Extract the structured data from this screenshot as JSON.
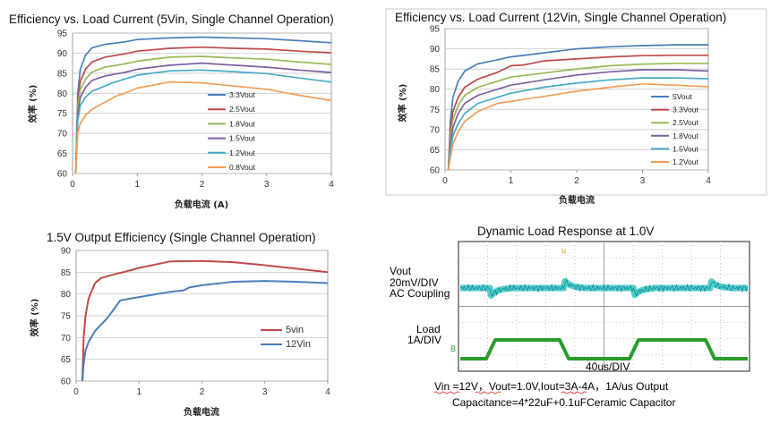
{
  "chart_data": [
    {
      "type": "line",
      "title": "Efficiency vs. Load Current (5Vin, Single Channel Operation)",
      "xlabel": "负载电流 (A)",
      "ylabel": "效率 (%)",
      "xlim": [
        0,
        4
      ],
      "ylim": [
        60,
        95
      ],
      "xticks": [
        "0",
        "1",
        "2",
        "3",
        "4"
      ],
      "yticks": [
        "60",
        "65",
        "70",
        "75",
        "80",
        "85",
        "90",
        "95"
      ],
      "grid": true,
      "legend_position": "right",
      "series": [
        {
          "name": "3.3Vout",
          "color": "#4a7ebb",
          "points": [
            [
              0.05,
              60
            ],
            [
              0.08,
              80
            ],
            [
              0.12,
              86
            ],
            [
              0.2,
              89.5
            ],
            [
              0.3,
              91.3
            ],
            [
              0.5,
              92.2
            ],
            [
              0.8,
              92.8
            ],
            [
              1.0,
              93.4
            ],
            [
              1.5,
              93.8
            ],
            [
              2.0,
              94
            ],
            [
              2.5,
              93.8
            ],
            [
              3.0,
              93.6
            ],
            [
              3.5,
              93.1
            ],
            [
              4.0,
              92.6
            ]
          ]
        },
        {
          "name": "2.5Vout",
          "color": "#be4b48",
          "points": [
            [
              0.05,
              60
            ],
            [
              0.08,
              78
            ],
            [
              0.12,
              83
            ],
            [
              0.2,
              86
            ],
            [
              0.3,
              87.8
            ],
            [
              0.5,
              89
            ],
            [
              0.8,
              89.8
            ],
            [
              1.0,
              90.5
            ],
            [
              1.5,
              91.2
            ],
            [
              2.0,
              91.5
            ],
            [
              2.5,
              91.2
            ],
            [
              3.0,
              91
            ],
            [
              3.5,
              90.5
            ],
            [
              4.0,
              90.1
            ]
          ]
        },
        {
          "name": "1.8Vout",
          "color": "#98b954",
          "points": [
            [
              0.05,
              60
            ],
            [
              0.08,
              77
            ],
            [
              0.12,
              81
            ],
            [
              0.2,
              83.5
            ],
            [
              0.3,
              85.3
            ],
            [
              0.5,
              86.5
            ],
            [
              0.8,
              87.3
            ],
            [
              1.0,
              88
            ],
            [
              1.5,
              89
            ],
            [
              2.0,
              89.2
            ],
            [
              2.5,
              88.8
            ],
            [
              3.0,
              88.5
            ],
            [
              3.5,
              87.8
            ],
            [
              4.0,
              87.2
            ]
          ]
        },
        {
          "name": "1.5Vout",
          "color": "#7d60a0",
          "points": [
            [
              0.05,
              60
            ],
            [
              0.08,
              75
            ],
            [
              0.12,
              79
            ],
            [
              0.2,
              81.5
            ],
            [
              0.3,
              83.2
            ],
            [
              0.5,
              84.3
            ],
            [
              0.8,
              85.2
            ],
            [
              1.0,
              86
            ],
            [
              1.5,
              87
            ],
            [
              2.0,
              87.5
            ],
            [
              2.5,
              87
            ],
            [
              3.0,
              86.5
            ],
            [
              3.5,
              85.8
            ],
            [
              4.0,
              85.2
            ]
          ]
        },
        {
          "name": "1.2Vout",
          "color": "#46aac5",
          "points": [
            [
              0.05,
              60
            ],
            [
              0.08,
              73
            ],
            [
              0.12,
              77
            ],
            [
              0.2,
              79
            ],
            [
              0.3,
              80.5
            ],
            [
              0.5,
              81.8
            ],
            [
              0.6,
              82.5
            ],
            [
              0.8,
              83.5
            ],
            [
              1.0,
              84.5
            ],
            [
              1.5,
              85.6
            ],
            [
              2.0,
              85.8
            ],
            [
              2.5,
              85.4
            ],
            [
              3.0,
              84.9
            ],
            [
              3.5,
              83.8
            ],
            [
              4.0,
              82.8
            ]
          ]
        },
        {
          "name": "0.8Vout",
          "color": "#f59d56",
          "points": [
            [
              0.05,
              60
            ],
            [
              0.08,
              70
            ],
            [
              0.12,
              72.5
            ],
            [
              0.2,
              74.5
            ],
            [
              0.3,
              76
            ],
            [
              0.5,
              77.8
            ],
            [
              0.7,
              79.5
            ],
            [
              0.8,
              80
            ],
            [
              1.0,
              81.3
            ],
            [
              1.5,
              82.8
            ],
            [
              2.0,
              82.6
            ],
            [
              2.5,
              81.8
            ],
            [
              3.0,
              81
            ],
            [
              3.5,
              79.5
            ],
            [
              4.0,
              78.2
            ]
          ]
        }
      ]
    },
    {
      "type": "line",
      "title": "Efficiency vs. Load Current (12Vin, Single Channel Operation)",
      "xlabel": "负载电流",
      "ylabel": "效率 (%)",
      "xlim": [
        0,
        4
      ],
      "ylim": [
        60,
        95
      ],
      "xticks": [
        "0",
        "1",
        "2",
        "3",
        "4"
      ],
      "yticks": [
        "60",
        "65",
        "70",
        "75",
        "80",
        "85",
        "90",
        "95"
      ],
      "grid": true,
      "legend_position": "right",
      "series": [
        {
          "name": "5Vout",
          "color": "#4a7ebb",
          "points": [
            [
              0.05,
              60
            ],
            [
              0.08,
              72
            ],
            [
              0.12,
              78
            ],
            [
              0.2,
              82
            ],
            [
              0.3,
              84.5
            ],
            [
              0.5,
              86.3
            ],
            [
              0.8,
              87.3
            ],
            [
              1.0,
              88
            ],
            [
              1.5,
              89
            ],
            [
              2.0,
              90
            ],
            [
              2.5,
              90.5
            ],
            [
              3.0,
              90.8
            ],
            [
              3.5,
              91
            ],
            [
              4.0,
              91
            ]
          ]
        },
        {
          "name": "3.3Vout",
          "color": "#be4b48",
          "points": [
            [
              0.05,
              60
            ],
            [
              0.08,
              70
            ],
            [
              0.12,
              74.5
            ],
            [
              0.2,
              78
            ],
            [
              0.3,
              80.5
            ],
            [
              0.5,
              82.5
            ],
            [
              0.8,
              84.2
            ],
            [
              1.0,
              85.8
            ],
            [
              1.2,
              86
            ],
            [
              1.5,
              87
            ],
            [
              2.0,
              87.5
            ],
            [
              2.5,
              88
            ],
            [
              3.0,
              88.3
            ],
            [
              3.5,
              88.4
            ],
            [
              4.0,
              88.4
            ]
          ]
        },
        {
          "name": "2.5Vout",
          "color": "#98b954",
          "points": [
            [
              0.05,
              60
            ],
            [
              0.08,
              68
            ],
            [
              0.12,
              72.5
            ],
            [
              0.2,
              76
            ],
            [
              0.3,
              78.5
            ],
            [
              0.5,
              80.5
            ],
            [
              0.8,
              82
            ],
            [
              1.0,
              83
            ],
            [
              1.5,
              84
            ],
            [
              2.0,
              85
            ],
            [
              2.5,
              85.8
            ],
            [
              3.0,
              86.2
            ],
            [
              3.5,
              86.4
            ],
            [
              4.0,
              86.4
            ]
          ]
        },
        {
          "name": "1.8Vout",
          "color": "#7d60a0",
          "points": [
            [
              0.05,
              60
            ],
            [
              0.08,
              66
            ],
            [
              0.12,
              70.5
            ],
            [
              0.2,
              74
            ],
            [
              0.3,
              76.5
            ],
            [
              0.5,
              78.5
            ],
            [
              0.8,
              80
            ],
            [
              1.0,
              81
            ],
            [
              1.5,
              82.3
            ],
            [
              2.0,
              83.5
            ],
            [
              2.5,
              84.3
            ],
            [
              3.0,
              84.8
            ],
            [
              3.5,
              84.8
            ],
            [
              4.0,
              84.5
            ]
          ]
        },
        {
          "name": "1.5Vout",
          "color": "#46aac5",
          "points": [
            [
              0.05,
              60
            ],
            [
              0.08,
              65
            ],
            [
              0.12,
              68.5
            ],
            [
              0.2,
              71.5
            ],
            [
              0.3,
              74
            ],
            [
              0.5,
              76.5
            ],
            [
              0.8,
              78
            ],
            [
              1.0,
              79
            ],
            [
              1.5,
              80.5
            ],
            [
              2.0,
              81.5
            ],
            [
              2.5,
              82.3
            ],
            [
              3.0,
              82.8
            ],
            [
              3.5,
              82.8
            ],
            [
              4.0,
              82.6
            ]
          ]
        },
        {
          "name": "1.2Vout",
          "color": "#f59d56",
          "points": [
            [
              0.05,
              60
            ],
            [
              0.08,
              63
            ],
            [
              0.12,
              66.5
            ],
            [
              0.2,
              69.5
            ],
            [
              0.3,
              72
            ],
            [
              0.5,
              74.5
            ],
            [
              0.8,
              76.5
            ],
            [
              1.0,
              77
            ],
            [
              1.5,
              78.2
            ],
            [
              2.0,
              79.5
            ],
            [
              2.5,
              80.5
            ],
            [
              3.0,
              81.3
            ],
            [
              3.5,
              81
            ],
            [
              4.0,
              80.6
            ]
          ]
        }
      ]
    },
    {
      "type": "line",
      "title": "1.5V Output Efficiency (Single Channel Operation)",
      "xlabel": "负载电流",
      "ylabel": "效率 (%)",
      "xlim": [
        0,
        4
      ],
      "ylim": [
        60,
        90
      ],
      "xticks": [
        "0",
        "1",
        "2",
        "3",
        "4"
      ],
      "yticks": [
        "60",
        "65",
        "70",
        "75",
        "80",
        "85",
        "90"
      ],
      "grid": true,
      "legend_position": "bottom-right",
      "series": [
        {
          "name": "5vin",
          "color": "#be4b48",
          "points": [
            [
              0.1,
              60
            ],
            [
              0.12,
              70
            ],
            [
              0.15,
              75
            ],
            [
              0.2,
              79
            ],
            [
              0.3,
              82.5
            ],
            [
              0.4,
              83.7
            ],
            [
              0.6,
              84.5
            ],
            [
              0.8,
              85.2
            ],
            [
              1.0,
              86
            ],
            [
              1.5,
              87.5
            ],
            [
              2.0,
              87.6
            ],
            [
              2.5,
              87.3
            ],
            [
              3.0,
              86.6
            ],
            [
              3.5,
              85.8
            ],
            [
              4.0,
              85
            ]
          ]
        },
        {
          "name": "12Vin",
          "color": "#4a7ebb",
          "points": [
            [
              0.1,
              60
            ],
            [
              0.12,
              64
            ],
            [
              0.15,
              67
            ],
            [
              0.2,
              69
            ],
            [
              0.3,
              71.5
            ],
            [
              0.4,
              73
            ],
            [
              0.5,
              74.5
            ],
            [
              0.6,
              76.5
            ],
            [
              0.7,
              78.5
            ],
            [
              0.8,
              78.8
            ],
            [
              1.0,
              79.3
            ],
            [
              1.5,
              80.5
            ],
            [
              1.7,
              80.8
            ],
            [
              1.8,
              81.5
            ],
            [
              2.0,
              82
            ],
            [
              2.5,
              82.8
            ],
            [
              3.0,
              83
            ],
            [
              3.5,
              82.8
            ],
            [
              4.0,
              82.5
            ]
          ]
        }
      ]
    }
  ],
  "scope": {
    "title": "Dynamic Load Response at 1.0V",
    "vout_label_1": "Vout",
    "vout_label_2": "20mV/DIV",
    "vout_label_3": "AC Coupling",
    "load_label_1": "Load",
    "load_label_2": "1A/DIV",
    "time_div": "40us/DIV",
    "note_1": "Vin =12V，Vout=1.0V,Iout=3A-4A，1A/us Output",
    "note_2": "Capacitance=4*22uF+0.1uFCeramic Capacitor",
    "ch1_color": "#2fc4c4",
    "ch2_color": "#2a9d2a"
  }
}
